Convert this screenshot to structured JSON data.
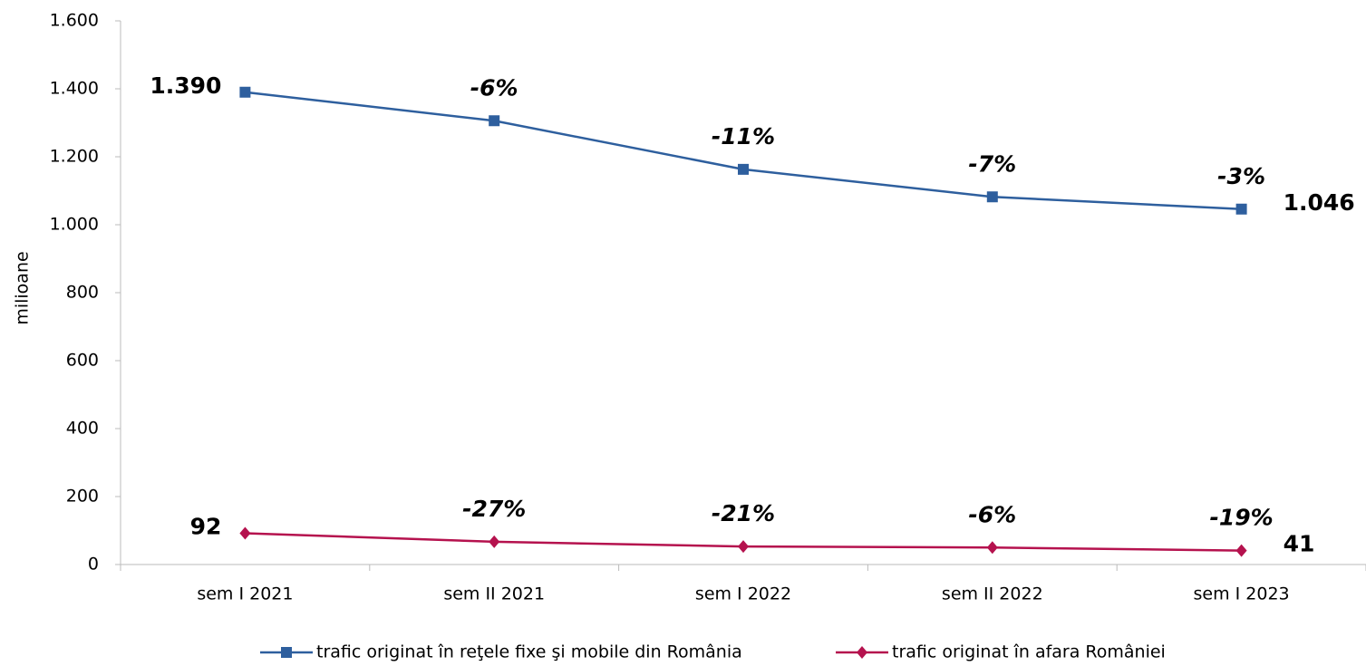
{
  "chart_data": {
    "type": "line",
    "y_label": "milioane",
    "categories": [
      "sem I 2021",
      "sem II 2021",
      "sem I 2022",
      "sem II 2022",
      "sem I 2023"
    ],
    "series": [
      {
        "name": "trafic originat în reţele fixe şi mobile din România",
        "color": "#2e5f9e",
        "marker": "square",
        "values": [
          1390,
          1306,
          1163,
          1082,
          1046
        ],
        "value_labels": [
          "1.390",
          null,
          null,
          null,
          "1.046"
        ],
        "change_labels": [
          null,
          "-6%",
          "-11%",
          "-7%",
          "-3%"
        ]
      },
      {
        "name": "trafic originat în afara României",
        "color": "#b5124e",
        "marker": "diamond",
        "values": [
          92,
          67,
          53,
          50,
          41
        ],
        "value_labels": [
          "92",
          null,
          null,
          null,
          "41"
        ],
        "change_labels": [
          null,
          "-27%",
          "-21%",
          "-6%",
          "-19%"
        ]
      }
    ],
    "ylim": [
      0,
      1600
    ],
    "yticks": [
      0,
      200,
      400,
      600,
      800,
      {
        "value": 1000,
        "label": "1.000"
      },
      {
        "value": 1200,
        "label": "1.200"
      },
      {
        "value": 1400,
        "label": "1.400"
      },
      {
        "value": 1600,
        "label": "1.600"
      }
    ],
    "grid": false,
    "legend": "bottom"
  }
}
